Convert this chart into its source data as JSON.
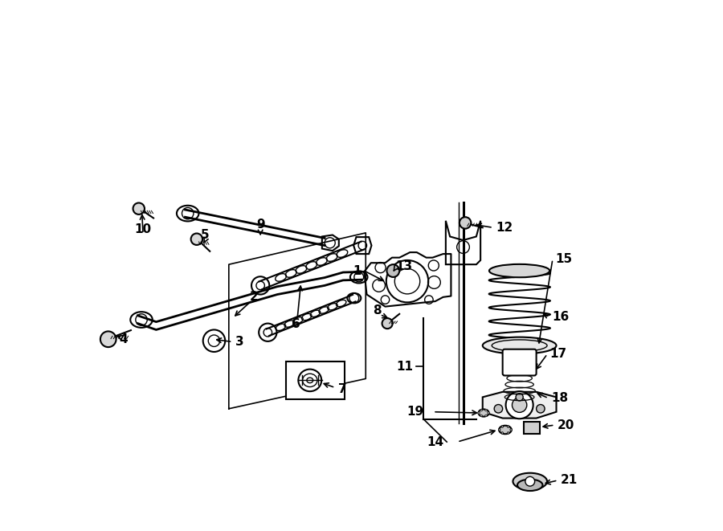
{
  "bg_color": "#ffffff",
  "line_color": "#000000",
  "figsize": [
    9.0,
    6.61
  ],
  "dpi": 100,
  "labels": {
    "1": [
      0.5,
      0.49,
      0.548,
      0.468
    ],
    "2": [
      0.295,
      0.44,
      0.255,
      0.4
    ],
    "3": [
      0.26,
      0.355,
      0.218,
      0.36
    ],
    "4": [
      0.048,
      0.36,
      0.03,
      0.368
    ],
    "5": [
      0.203,
      0.558,
      0.198,
      0.538
    ],
    "6": [
      0.375,
      0.388,
      0.385,
      0.468
    ],
    "7": [
      0.455,
      0.265,
      0.422,
      0.278
    ],
    "8": [
      0.53,
      0.415,
      0.555,
      0.398
    ],
    "9": [
      0.308,
      0.578,
      0.308,
      0.552
    ],
    "10": [
      0.085,
      0.568,
      0.083,
      0.603
    ],
    "11": [
      0.598,
      0.308,
      0.618,
      0.308
    ],
    "12": [
      0.755,
      0.572,
      0.712,
      0.578
    ],
    "13": [
      0.565,
      0.498,
      0.56,
      0.488
    ],
    "14": [
      0.657,
      0.165,
      0.76,
      0.188
    ],
    "15": [
      0.868,
      0.512,
      0.836,
      0.346
    ],
    "16": [
      0.862,
      0.402,
      0.84,
      0.412
    ],
    "17": [
      0.858,
      0.332,
      0.828,
      0.298
    ],
    "18": [
      0.86,
      0.248,
      0.828,
      0.26
    ],
    "19": [
      0.618,
      0.222,
      0.726,
      0.22
    ],
    "20": [
      0.872,
      0.197,
      0.838,
      0.193
    ],
    "21": [
      0.878,
      0.092,
      0.843,
      0.085
    ]
  }
}
